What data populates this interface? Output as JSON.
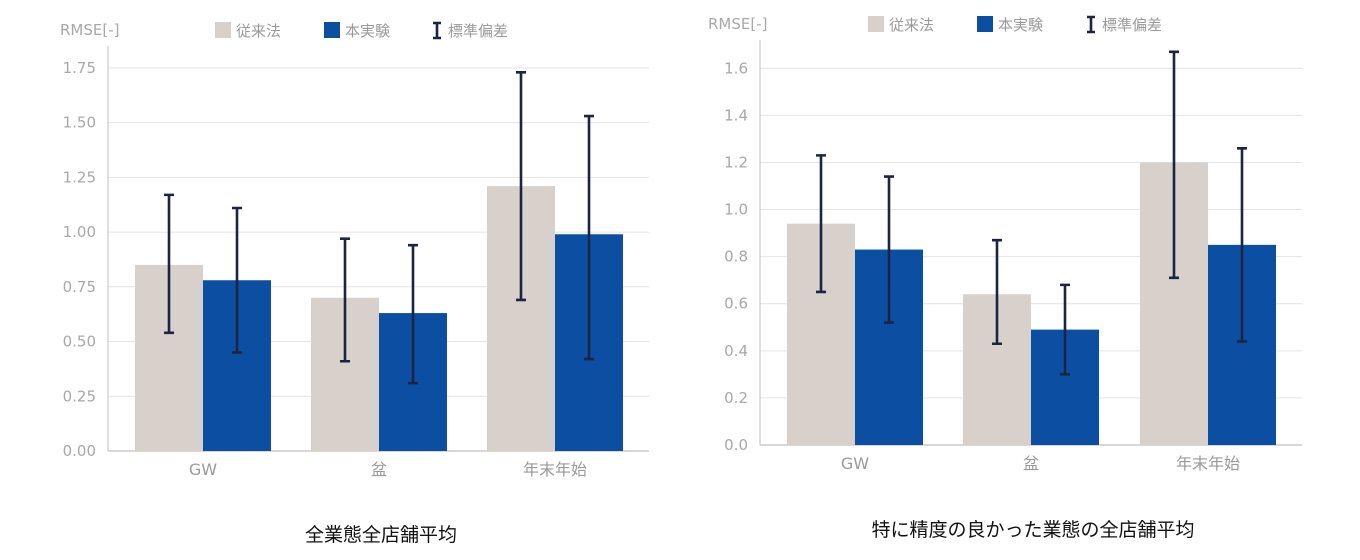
{
  "colors": {
    "conventional": "#d8d0cb",
    "experiment": "#0b4ea2",
    "error_bar": "#1b2543",
    "grid": "#e4e4e4",
    "axis": "#bfbfbf"
  },
  "legend": {
    "conventional": "従来法",
    "experiment": "本実験",
    "std_dev": "標準偏差"
  },
  "chart_data": [
    {
      "type": "bar",
      "caption": "全業態全店舗平均",
      "ylabel": "RMSE[-]",
      "xlabel": "",
      "categories": [
        "GW",
        "盆",
        "年末年始"
      ],
      "ylim": [
        0,
        1.85
      ],
      "yticks": [
        "0.00",
        "0.25",
        "0.50",
        "0.75",
        "1.00",
        "1.25",
        "1.50",
        "1.75"
      ],
      "grid": true,
      "legend_position": "top",
      "series": [
        {
          "name": "従来法",
          "values": [
            0.85,
            0.7,
            1.21
          ],
          "err_low": [
            0.54,
            0.41,
            0.69
          ],
          "err_high": [
            1.17,
            0.97,
            1.73
          ]
        },
        {
          "name": "本実験",
          "values": [
            0.78,
            0.63,
            0.99
          ],
          "err_low": [
            0.45,
            0.31,
            0.42
          ],
          "err_high": [
            1.11,
            0.94,
            1.53
          ]
        }
      ]
    },
    {
      "type": "bar",
      "caption": "特に精度の良かった業態の全店舗平均",
      "ylabel": "RMSE[-]",
      "xlabel": "",
      "categories": [
        "GW",
        "盆",
        "年末年始"
      ],
      "ylim": [
        0,
        1.72
      ],
      "yticks": [
        "0.0",
        "0.2",
        "0.4",
        "0.6",
        "0.8",
        "1.0",
        "1.2",
        "1.4",
        "1.6"
      ],
      "grid": true,
      "legend_position": "top",
      "series": [
        {
          "name": "従来法",
          "values": [
            0.94,
            0.64,
            1.2
          ],
          "err_low": [
            0.65,
            0.43,
            0.71
          ],
          "err_high": [
            1.23,
            0.87,
            1.67
          ]
        },
        {
          "name": "本実験",
          "values": [
            0.83,
            0.49,
            0.85
          ],
          "err_low": [
            0.52,
            0.3,
            0.44
          ],
          "err_high": [
            1.14,
            0.68,
            1.26
          ]
        }
      ]
    }
  ]
}
